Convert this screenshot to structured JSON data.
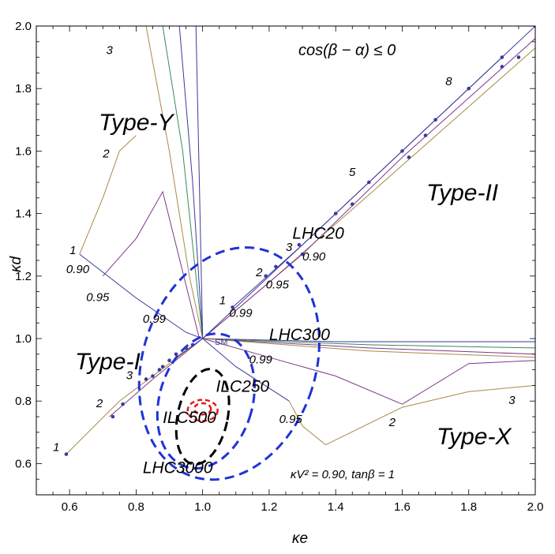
{
  "chart_data": {
    "type": "line",
    "xlabel": "κe",
    "ylabel": "κd",
    "xlim": [
      0.5,
      2.0
    ],
    "ylim": [
      0.5,
      2.0
    ],
    "x_ticks": [
      "0.6",
      "0.8",
      "1.0",
      "1.2",
      "1.4",
      "1.6",
      "1.8",
      "2.0"
    ],
    "y_ticks": [
      "0.6",
      "0.8",
      "1.0",
      "1.2",
      "1.4",
      "1.6",
      "1.8",
      "2.0"
    ],
    "grid": false,
    "annotations": {
      "condition": "cos(β − α) ≤ 0",
      "params": "κV² = 0.90,  tanβ = 1",
      "sm": "SM"
    },
    "model_labels": [
      "Type-I",
      "Type-II",
      "Type-X",
      "Type-Y"
    ],
    "ellipses": [
      {
        "name": "LHC20",
        "color": "#1f33d6",
        "cx": 1.08,
        "cy": 0.92,
        "rx": 0.26,
        "ry": 0.38,
        "rot": 18,
        "style": "dashed"
      },
      {
        "name": "LHC300",
        "color": "#1f33d6",
        "cx": 1.01,
        "cy": 0.8,
        "rx": 0.14,
        "ry": 0.22,
        "rot": 16,
        "style": "dashed"
      },
      {
        "name": "LHC3000",
        "color": "#000000",
        "cx": 1.0,
        "cy": 0.75,
        "rx": 0.075,
        "ry": 0.155,
        "rot": 12,
        "style": "dashed"
      },
      {
        "name": "ILC500",
        "color": "#e11a1a",
        "cx": 1.0,
        "cy": 0.77,
        "rx": 0.045,
        "ry": 0.034,
        "rot": 0,
        "style": "dashed"
      },
      {
        "name": "ILC250",
        "color": "#e11a1a",
        "cx": 1.0,
        "cy": 0.775,
        "rx": 0.025,
        "ry": 0.018,
        "rot": 0,
        "style": "dashed"
      }
    ],
    "ellipse_labels": [
      {
        "name": "LHC20",
        "x": 1.27,
        "y": 1.32,
        "color": "#4a2fd6"
      },
      {
        "name": "LHC300",
        "x": 1.2,
        "y": 0.995,
        "color": "#4a2fd6"
      },
      {
        "name": "LHC3000",
        "x": 0.82,
        "y": 0.57,
        "color": "#000000"
      },
      {
        "name": "ILC250",
        "x": 1.04,
        "y": 0.83,
        "color": "#e11a1a"
      },
      {
        "name": "ILC500",
        "x": 0.88,
        "y": 0.73,
        "color": "#e11a1a"
      }
    ],
    "curve_labels": [
      {
        "text": "3",
        "x": 0.71,
        "y": 1.91
      },
      {
        "text": "2",
        "x": 0.7,
        "y": 1.58
      },
      {
        "text": "1",
        "x": 0.6,
        "y": 1.27
      },
      {
        "text": "0.90",
        "x": 0.59,
        "y": 1.21
      },
      {
        "text": "0.95",
        "x": 0.65,
        "y": 1.12
      },
      {
        "text": "0.99",
        "x": 0.82,
        "y": 1.05
      },
      {
        "text": "8",
        "x": 1.73,
        "y": 1.81
      },
      {
        "text": "5",
        "x": 1.44,
        "y": 1.52
      },
      {
        "text": "3",
        "x": 1.25,
        "y": 1.28
      },
      {
        "text": "2",
        "x": 1.16,
        "y": 1.2
      },
      {
        "text": "1",
        "x": 1.05,
        "y": 1.11
      },
      {
        "text": "0.90",
        "x": 1.3,
        "y": 1.25
      },
      {
        "text": "0.95",
        "x": 1.19,
        "y": 1.16
      },
      {
        "text": "0.99",
        "x": 1.08,
        "y": 1.07
      },
      {
        "text": "3",
        "x": 0.77,
        "y": 0.87
      },
      {
        "text": "2",
        "x": 0.68,
        "y": 0.78
      },
      {
        "text": "1",
        "x": 0.55,
        "y": 0.64
      },
      {
        "text": "0.99",
        "x": 1.14,
        "y": 0.92
      },
      {
        "text": "0.95",
        "x": 1.23,
        "y": 0.73
      },
      {
        "text": "2",
        "x": 1.56,
        "y": 0.72
      },
      {
        "text": "3",
        "x": 1.92,
        "y": 0.79
      }
    ],
    "series": [
      {
        "color": "#a8894a",
        "points": [
          [
            0.59,
            0.63
          ],
          [
            0.75,
            0.8
          ],
          [
            0.9,
            0.92
          ],
          [
            1.0,
            1.0
          ],
          [
            1.2,
            1.18
          ],
          [
            1.5,
            1.46
          ],
          [
            2.0,
            1.93
          ]
        ]
      },
      {
        "color": "#7d3a8a",
        "points": [
          [
            0.72,
            0.75
          ],
          [
            0.85,
            0.87
          ],
          [
            1.0,
            1.0
          ],
          [
            1.3,
            1.27
          ],
          [
            1.6,
            1.58
          ],
          [
            2.0,
            1.96
          ]
        ]
      },
      {
        "color": "#3c3a9a",
        "points": [
          [
            0.92,
            0.94
          ],
          [
            1.0,
            1.0
          ],
          [
            1.3,
            1.3
          ],
          [
            1.6,
            1.6
          ],
          [
            2.0,
            2.0
          ]
        ]
      },
      {
        "color": "#3c3a9a",
        "points": [
          [
            1.09,
            1.1
          ],
          [
            1.3,
            1.3
          ],
          [
            1.7,
            1.7
          ],
          [
            1.9,
            1.9
          ]
        ]
      },
      {
        "color": "#3c3a9a",
        "points": [
          [
            0.63,
            1.27
          ],
          [
            0.8,
            1.13
          ],
          [
            0.95,
            1.02
          ],
          [
            1.0,
            1.0
          ]
        ]
      },
      {
        "color": "#7d3a8a",
        "points": [
          [
            0.7,
            1.2
          ],
          [
            0.8,
            1.32
          ],
          [
            0.88,
            1.47
          ],
          [
            0.99,
            1.0
          ]
        ]
      },
      {
        "color": "#a8894a",
        "points": [
          [
            0.63,
            1.27
          ],
          [
            0.7,
            1.45
          ],
          [
            0.75,
            1.6
          ],
          [
            0.8,
            1.65
          ]
        ]
      },
      {
        "color": "#a8894a",
        "points": [
          [
            0.83,
            2.0
          ],
          [
            0.9,
            1.6
          ],
          [
            0.96,
            1.2
          ],
          [
            1.0,
            1.0
          ]
        ]
      },
      {
        "color": "#3a8a5a",
        "points": [
          [
            0.88,
            2.0
          ],
          [
            0.94,
            1.6
          ],
          [
            0.98,
            1.2
          ],
          [
            1.0,
            1.0
          ]
        ]
      },
      {
        "color": "#3c3a9a",
        "points": [
          [
            0.93,
            2.0
          ],
          [
            0.97,
            1.5
          ],
          [
            1.0,
            1.0
          ]
        ]
      },
      {
        "color": "#3c3a9a",
        "points": [
          [
            0.98,
            2.0
          ],
          [
            0.99,
            1.5
          ],
          [
            1.0,
            1.0
          ]
        ]
      },
      {
        "color": "#3c3a9a",
        "points": [
          [
            1.0,
            1.0
          ],
          [
            1.4,
            0.99
          ],
          [
            2.0,
            0.99
          ]
        ]
      },
      {
        "color": "#3a8a5a",
        "points": [
          [
            1.0,
            1.0
          ],
          [
            1.5,
            0.98
          ],
          [
            2.0,
            0.97
          ]
        ]
      },
      {
        "color": "#7d3a8a",
        "points": [
          [
            1.0,
            1.0
          ],
          [
            1.5,
            0.97
          ],
          [
            2.0,
            0.95
          ]
        ]
      },
      {
        "color": "#a8894a",
        "points": [
          [
            1.0,
            1.0
          ],
          [
            1.5,
            0.96
          ],
          [
            2.0,
            0.94
          ]
        ]
      },
      {
        "color": "#3c3a9a",
        "points": [
          [
            1.0,
            1.0
          ],
          [
            1.1,
            0.91
          ],
          [
            1.26,
            0.8
          ]
        ]
      },
      {
        "color": "#a8894a",
        "points": [
          [
            1.26,
            0.8
          ],
          [
            1.3,
            0.72
          ],
          [
            1.37,
            0.66
          ]
        ]
      },
      {
        "color": "#7d3a8a",
        "points": [
          [
            1.0,
            1.0
          ],
          [
            1.2,
            0.94
          ],
          [
            1.4,
            0.88
          ],
          [
            1.6,
            0.79
          ]
        ]
      },
      {
        "color": "#a8894a",
        "points": [
          [
            1.37,
            0.66
          ],
          [
            1.6,
            0.78
          ],
          [
            1.8,
            0.83
          ],
          [
            2.0,
            0.85
          ]
        ]
      },
      {
        "color": "#7d3a8a",
        "points": [
          [
            1.6,
            0.79
          ],
          [
            1.8,
            0.92
          ],
          [
            2.0,
            0.93
          ]
        ]
      }
    ],
    "dots": [
      [
        0.59,
        0.63
      ],
      [
        0.73,
        0.75
      ],
      [
        0.76,
        0.79
      ],
      [
        0.83,
        0.87
      ],
      [
        0.85,
        0.88
      ],
      [
        0.87,
        0.9
      ],
      [
        0.88,
        0.91
      ],
      [
        0.9,
        0.93
      ],
      [
        0.92,
        0.95
      ],
      [
        0.95,
        0.97
      ],
      [
        0.97,
        0.98
      ],
      [
        1.09,
        1.1
      ],
      [
        1.19,
        1.2
      ],
      [
        1.22,
        1.23
      ],
      [
        1.29,
        1.3
      ],
      [
        1.3,
        1.27
      ],
      [
        1.4,
        1.4
      ],
      [
        1.45,
        1.43
      ],
      [
        1.5,
        1.5
      ],
      [
        1.6,
        1.6
      ],
      [
        1.62,
        1.58
      ],
      [
        1.67,
        1.65
      ],
      [
        1.7,
        1.7
      ],
      [
        1.8,
        1.8
      ],
      [
        1.9,
        1.9
      ],
      [
        1.9,
        1.87
      ],
      [
        1.95,
        1.9
      ],
      [
        2.0,
        2.0
      ]
    ]
  }
}
